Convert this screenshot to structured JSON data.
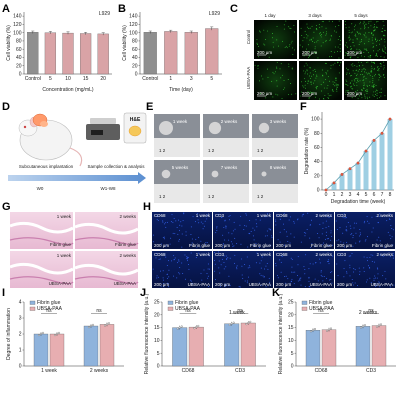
{
  "colors": {
    "grey": "#8f8f8f",
    "pink": "#d9a3a6",
    "blue": "#8fb3dc",
    "pink2": "#e7aeb1",
    "scaffold": "#7fbfd9",
    "lineteal": "#5a9fb0",
    "redpt": "#e05b3c"
  },
  "panel_labels": [
    "A",
    "B",
    "C",
    "D",
    "E",
    "F",
    "G",
    "H",
    "I",
    "J",
    "K"
  ],
  "chart_data": [
    {
      "id": "A",
      "type": "bar",
      "tag": "L929",
      "categories": [
        "Control",
        "5",
        "10",
        "15",
        "20"
      ],
      "values": [
        101,
        100,
        99,
        98,
        97
      ],
      "errors": [
        3,
        3,
        3,
        3,
        3
      ],
      "ylim": [
        0,
        150
      ],
      "yticks": [
        0,
        20,
        40,
        60,
        80,
        100,
        120,
        140
      ],
      "ylabel": "Cell viability (%)",
      "xlabel": "Concentration (mg/mL)"
    },
    {
      "id": "B",
      "type": "bar",
      "tag": "L929",
      "categories": [
        "Control",
        "1",
        "3",
        "5"
      ],
      "values": [
        101,
        103,
        101,
        110
      ],
      "errors": [
        3,
        3,
        3,
        4
      ],
      "ylim": [
        0,
        150
      ],
      "yticks": [
        0,
        20,
        40,
        60,
        80,
        100,
        120,
        140
      ],
      "ylabel": "Cell viability (%)",
      "xlabel": "Time (day)"
    },
    {
      "id": "F",
      "type": "line",
      "x": [
        0,
        1,
        2,
        3,
        4,
        5,
        6,
        7,
        8
      ],
      "y": [
        0,
        10,
        22,
        30,
        38,
        55,
        70,
        80,
        100
      ],
      "ylim": [
        0,
        110
      ],
      "yticks": [
        0,
        20,
        40,
        60,
        80,
        100
      ],
      "ylabel": "Degradation rate (%)",
      "xlabel": "Degradation time (week)"
    },
    {
      "id": "I",
      "type": "bar",
      "categories": [
        "1 week",
        "2 weeks"
      ],
      "series": [
        {
          "name": "Fibrin glue",
          "values": [
            2.0,
            2.5
          ]
        },
        {
          "name": "UBSA-PAA",
          "values": [
            2.0,
            2.6
          ]
        }
      ],
      "ylim": [
        0,
        4
      ],
      "yticks": [
        0,
        1,
        2,
        3,
        4
      ],
      "ylabel": "Degree of inflammation",
      "annot": "ns"
    },
    {
      "id": "J",
      "type": "bar",
      "title": "1 week",
      "categories": [
        "CD68",
        "CD3"
      ],
      "series": [
        {
          "name": "Fibrin glue",
          "values": [
            15.0,
            16.5
          ]
        },
        {
          "name": "UBSA-PAA",
          "values": [
            15.2,
            16.8
          ]
        }
      ],
      "ylim": [
        0,
        25
      ],
      "yticks": [
        0,
        5,
        10,
        15,
        20,
        25
      ],
      "ylabel": "Relative fluorescence intensity (a.u.)",
      "annot": "ns"
    },
    {
      "id": "K",
      "type": "bar",
      "title": "2 weeks",
      "categories": [
        "CD68",
        "CD3"
      ],
      "series": [
        {
          "name": "Fibrin glue",
          "values": [
            14.0,
            15.5
          ]
        },
        {
          "name": "UBSA-PAA",
          "values": [
            14.2,
            15.8
          ]
        }
      ],
      "ylim": [
        0,
        25
      ],
      "yticks": [
        0,
        5,
        10,
        15,
        20,
        25
      ],
      "ylabel": "Relative fluorescence intensity (a.u.)",
      "annot": "ns"
    }
  ],
  "C": {
    "cols": [
      "1 day",
      "3 days",
      "5 days"
    ],
    "rows": [
      "Control",
      "UBSA-PAA"
    ],
    "scale": "200 μm"
  },
  "D": {
    "implant": "Subcutaneous implantation",
    "collect": "Sample collection & analysis",
    "w0": "W0",
    "w18": "W1-W8",
    "he": "H&E"
  },
  "E": {
    "labels": [
      "1 week",
      "2 weeks",
      "3 weeks",
      "5 weeks",
      "7 weeks",
      "8 weeks"
    ]
  },
  "G": {
    "labels": [
      "1 week",
      "2 weeks",
      "1 week",
      "2 weeks"
    ],
    "groups": [
      "Fibrin glue",
      "UBSA-PAA"
    ]
  },
  "H": {
    "markers": [
      "CD68",
      "CD3",
      "CD68",
      "CD3"
    ],
    "weeks": [
      "1 week",
      "1 week",
      "2 weeks",
      "2 weeks"
    ],
    "groups": [
      "Fibrin glue",
      "UBSA-PAA"
    ],
    "scale": "200 μm"
  }
}
